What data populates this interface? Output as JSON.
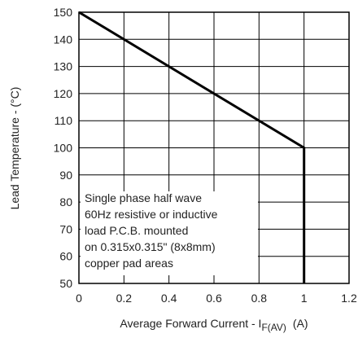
{
  "chart_data": {
    "type": "line",
    "title": "",
    "xlabel": "Average Forward Current - I",
    "xlabel_sub": "F(AV)",
    "xlabel_unit": "(A)",
    "ylabel": "Lead Temperature - (°C)",
    "xlim": [
      0,
      1.2
    ],
    "ylim": [
      50,
      150
    ],
    "x_ticks": [
      "0",
      "0.2",
      "0.4",
      "0.6",
      "0.8",
      "1",
      "1.2"
    ],
    "y_ticks": [
      "50",
      "60",
      "70",
      "80",
      "90",
      "100",
      "110",
      "120",
      "130",
      "140",
      "150"
    ],
    "grid": true,
    "series": [
      {
        "x": [
          0,
          1,
          1
        ],
        "y": [
          150,
          100,
          50
        ]
      }
    ],
    "annotation": [
      "Single phase half wave",
      "60Hz resistive or inductive",
      "load P.C.B. mounted",
      "on 0.315x0.315\" (8x8mm)",
      "copper pad areas"
    ]
  }
}
